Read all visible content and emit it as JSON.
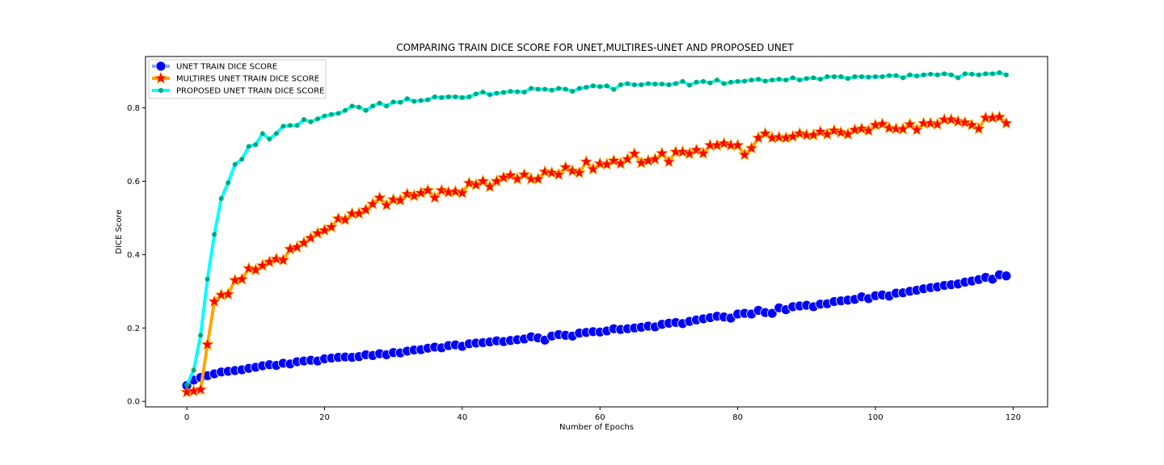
{
  "chart_data": {
    "type": "line",
    "title": "COMPARING TRAIN DICE SCORE FOR UNET,MULTIRES-UNET AND PROPOSED UNET",
    "xlabel": "Number of Epochs",
    "ylabel": "DICE Score",
    "xlim": [
      -6,
      125
    ],
    "ylim": [
      -0.015,
      0.94
    ],
    "xticks": [
      0,
      20,
      40,
      60,
      80,
      100,
      120
    ],
    "yticks": [
      0.0,
      0.2,
      0.4,
      0.6,
      0.8
    ],
    "grid": false,
    "legend_position": "top-left",
    "series": [
      {
        "name": "UNET TRAIN DICE SCORE",
        "line_color": "#7da7ff",
        "marker": "circle",
        "marker_color": "#0000ff",
        "x": [
          0,
          1,
          2,
          3,
          4,
          5,
          6,
          7,
          8,
          9,
          10,
          11,
          12,
          13,
          14,
          15,
          16,
          17,
          18,
          19,
          20,
          21,
          22,
          23,
          24,
          25,
          26,
          27,
          28,
          29,
          30,
          31,
          32,
          33,
          34,
          35,
          36,
          37,
          38,
          39,
          40,
          41,
          42,
          43,
          44,
          45,
          46,
          47,
          48,
          49,
          50,
          51,
          52,
          53,
          54,
          55,
          56,
          57,
          58,
          59,
          60,
          61,
          62,
          63,
          64,
          65,
          66,
          67,
          68,
          69,
          70,
          71,
          72,
          73,
          74,
          75,
          76,
          77,
          78,
          79,
          80,
          81,
          82,
          83,
          84,
          85,
          86,
          87,
          88,
          89,
          90,
          91,
          92,
          93,
          94,
          95,
          96,
          97,
          98,
          99,
          100,
          101,
          102,
          103,
          104,
          105,
          106,
          107,
          108,
          109,
          110,
          111,
          112,
          113,
          114,
          115,
          116,
          117,
          118,
          119
        ],
        "values": [
          0.043,
          0.058,
          0.065,
          0.07,
          0.075,
          0.08,
          0.082,
          0.084,
          0.086,
          0.09,
          0.093,
          0.097,
          0.1,
          0.098,
          0.104,
          0.102,
          0.108,
          0.11,
          0.112,
          0.11,
          0.116,
          0.118,
          0.12,
          0.121,
          0.12,
          0.122,
          0.127,
          0.125,
          0.13,
          0.127,
          0.133,
          0.132,
          0.137,
          0.14,
          0.141,
          0.145,
          0.148,
          0.146,
          0.152,
          0.154,
          0.15,
          0.157,
          0.159,
          0.16,
          0.162,
          0.165,
          0.163,
          0.166,
          0.168,
          0.17,
          0.176,
          0.173,
          0.167,
          0.178,
          0.182,
          0.18,
          0.178,
          0.186,
          0.188,
          0.19,
          0.189,
          0.192,
          0.198,
          0.196,
          0.198,
          0.2,
          0.202,
          0.205,
          0.203,
          0.21,
          0.213,
          0.215,
          0.212,
          0.218,
          0.222,
          0.225,
          0.228,
          0.232,
          0.23,
          0.227,
          0.238,
          0.24,
          0.238,
          0.248,
          0.242,
          0.24,
          0.255,
          0.25,
          0.258,
          0.26,
          0.262,
          0.258,
          0.265,
          0.266,
          0.272,
          0.274,
          0.276,
          0.278,
          0.285,
          0.28,
          0.288,
          0.29,
          0.287,
          0.295,
          0.296,
          0.3,
          0.303,
          0.307,
          0.31,
          0.312,
          0.316,
          0.318,
          0.32,
          0.325,
          0.328,
          0.332,
          0.338,
          0.333,
          0.345,
          0.342
        ]
      },
      {
        "name": "MULTIRES UNET TRAIN DICE SCORE",
        "line_color": "#ffa500",
        "marker": "star",
        "marker_color": "#ff0000",
        "x": [
          0,
          1,
          2,
          3,
          4,
          5,
          6,
          7,
          8,
          9,
          10,
          11,
          12,
          13,
          14,
          15,
          16,
          17,
          18,
          19,
          20,
          21,
          22,
          23,
          24,
          25,
          26,
          27,
          28,
          29,
          30,
          31,
          32,
          33,
          34,
          35,
          36,
          37,
          38,
          39,
          40,
          41,
          42,
          43,
          44,
          45,
          46,
          47,
          48,
          49,
          50,
          51,
          52,
          53,
          54,
          55,
          56,
          57,
          58,
          59,
          60,
          61,
          62,
          63,
          64,
          65,
          66,
          67,
          68,
          69,
          70,
          71,
          72,
          73,
          74,
          75,
          76,
          77,
          78,
          79,
          80,
          81,
          82,
          83,
          84,
          85,
          86,
          87,
          88,
          89,
          90,
          91,
          92,
          93,
          94,
          95,
          96,
          97,
          98,
          99,
          100,
          101,
          102,
          103,
          104,
          105,
          106,
          107,
          108,
          109,
          110,
          111,
          112,
          113,
          114,
          115,
          116,
          117,
          118,
          119
        ],
        "values": [
          0.025,
          0.028,
          0.032,
          0.155,
          0.272,
          0.29,
          0.292,
          0.33,
          0.333,
          0.362,
          0.358,
          0.37,
          0.38,
          0.388,
          0.385,
          0.415,
          0.42,
          0.432,
          0.445,
          0.458,
          0.466,
          0.475,
          0.498,
          0.495,
          0.512,
          0.512,
          0.522,
          0.538,
          0.555,
          0.535,
          0.55,
          0.548,
          0.565,
          0.56,
          0.568,
          0.575,
          0.555,
          0.575,
          0.57,
          0.572,
          0.568,
          0.595,
          0.59,
          0.6,
          0.585,
          0.6,
          0.61,
          0.616,
          0.606,
          0.618,
          0.606,
          0.606,
          0.626,
          0.623,
          0.618,
          0.638,
          0.628,
          0.623,
          0.653,
          0.633,
          0.648,
          0.646,
          0.656,
          0.648,
          0.66,
          0.675,
          0.65,
          0.656,
          0.66,
          0.676,
          0.653,
          0.68,
          0.68,
          0.675,
          0.685,
          0.676,
          0.698,
          0.698,
          0.703,
          0.698,
          0.698,
          0.672,
          0.69,
          0.718,
          0.73,
          0.718,
          0.72,
          0.718,
          0.722,
          0.73,
          0.726,
          0.726,
          0.735,
          0.728,
          0.738,
          0.733,
          0.728,
          0.74,
          0.743,
          0.738,
          0.753,
          0.756,
          0.745,
          0.743,
          0.742,
          0.755,
          0.74,
          0.758,
          0.758,
          0.755,
          0.768,
          0.768,
          0.763,
          0.76,
          0.753,
          0.743,
          0.773,
          0.773,
          0.775,
          0.758
        ]
      },
      {
        "name": "PROPOSED UNET TRAIN DICE SCORE",
        "line_color": "#00ffff",
        "marker": "circle-small",
        "marker_color": "#00a878",
        "x": [
          0,
          1,
          2,
          3,
          4,
          5,
          6,
          7,
          8,
          9,
          10,
          11,
          12,
          13,
          14,
          15,
          16,
          17,
          18,
          19,
          20,
          21,
          22,
          23,
          24,
          25,
          26,
          27,
          28,
          29,
          30,
          31,
          32,
          33,
          34,
          35,
          36,
          37,
          38,
          39,
          40,
          41,
          42,
          43,
          44,
          45,
          46,
          47,
          48,
          49,
          50,
          51,
          52,
          53,
          54,
          55,
          56,
          57,
          58,
          59,
          60,
          61,
          62,
          63,
          64,
          65,
          66,
          67,
          68,
          69,
          70,
          71,
          72,
          73,
          74,
          75,
          76,
          77,
          78,
          79,
          80,
          81,
          82,
          83,
          84,
          85,
          86,
          87,
          88,
          89,
          90,
          91,
          92,
          93,
          94,
          95,
          96,
          97,
          98,
          99,
          100,
          101,
          102,
          103,
          104,
          105,
          106,
          107,
          108,
          109,
          110,
          111,
          112,
          113,
          114,
          115,
          116,
          117,
          118,
          119
        ],
        "values": [
          0.045,
          0.085,
          0.18,
          0.333,
          0.455,
          0.553,
          0.596,
          0.646,
          0.66,
          0.695,
          0.7,
          0.73,
          0.715,
          0.73,
          0.75,
          0.752,
          0.752,
          0.768,
          0.762,
          0.77,
          0.778,
          0.782,
          0.785,
          0.793,
          0.805,
          0.802,
          0.793,
          0.805,
          0.813,
          0.805,
          0.816,
          0.815,
          0.825,
          0.818,
          0.82,
          0.822,
          0.83,
          0.828,
          0.83,
          0.83,
          0.828,
          0.83,
          0.838,
          0.843,
          0.836,
          0.84,
          0.842,
          0.845,
          0.844,
          0.843,
          0.853,
          0.851,
          0.851,
          0.848,
          0.853,
          0.851,
          0.845,
          0.853,
          0.856,
          0.86,
          0.858,
          0.86,
          0.85,
          0.863,
          0.866,
          0.863,
          0.863,
          0.866,
          0.865,
          0.865,
          0.863,
          0.866,
          0.872,
          0.862,
          0.87,
          0.872,
          0.868,
          0.876,
          0.866,
          0.87,
          0.872,
          0.873,
          0.876,
          0.878,
          0.873,
          0.876,
          0.878,
          0.876,
          0.882,
          0.876,
          0.88,
          0.882,
          0.878,
          0.885,
          0.885,
          0.885,
          0.88,
          0.885,
          0.885,
          0.884,
          0.885,
          0.885,
          0.888,
          0.888,
          0.882,
          0.89,
          0.887,
          0.89,
          0.892,
          0.89,
          0.893,
          0.89,
          0.882,
          0.893,
          0.892,
          0.89,
          0.893,
          0.893,
          0.896,
          0.89
        ]
      }
    ]
  }
}
